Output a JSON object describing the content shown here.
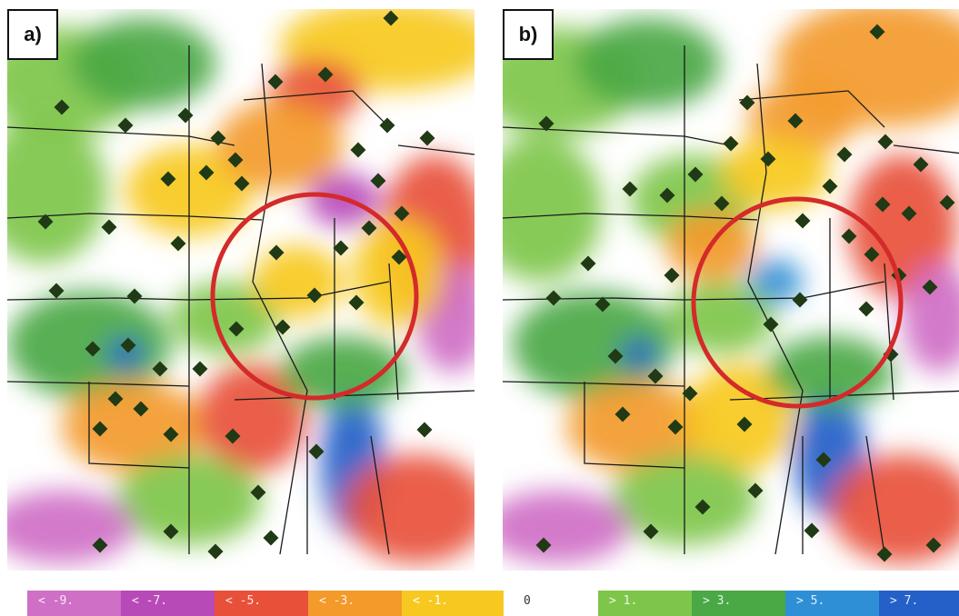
{
  "panels": [
    {
      "label": "a)"
    },
    {
      "label": "b)"
    }
  ],
  "legend": {
    "negative": [
      {
        "label": "< -9.",
        "color": "#cf6fc6"
      },
      {
        "label": "< -7.",
        "color": "#b84ab8"
      },
      {
        "label": "< -5.",
        "color": "#e8503a"
      },
      {
        "label": "< -3.",
        "color": "#f39a2a"
      },
      {
        "label": "< -1.",
        "color": "#f7c920"
      }
    ],
    "zero": {
      "label": "0",
      "color": "#ffffff"
    },
    "positive": [
      {
        "label": "> 1.",
        "color": "#7ec64a"
      },
      {
        "label": "> 3.",
        "color": "#4aa845"
      },
      {
        "label": "> 5.",
        "color": "#2f8fd6"
      },
      {
        "label": "> 7.",
        "color": "#2460c8"
      }
    ]
  },
  "highlight_color": "#d42a2a",
  "station_marker_color": "#1f3a14"
}
